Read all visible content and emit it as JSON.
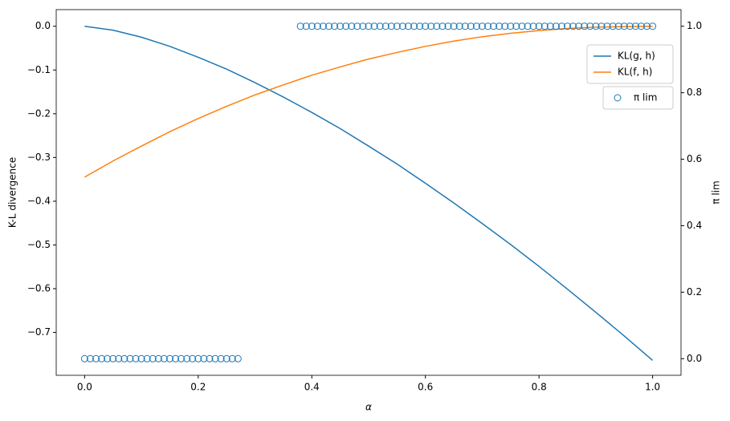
{
  "chart_data": {
    "type": "line",
    "x_label": "α",
    "y_label": "K-L divergence",
    "y2_label": "π lim",
    "x": [
      0,
      0.05,
      0.1,
      0.15,
      0.2,
      0.25,
      0.3,
      0.35,
      0.4,
      0.45,
      0.5,
      0.55,
      0.6,
      0.65,
      0.7,
      0.75,
      0.8,
      0.85,
      0.9,
      0.95,
      1
    ],
    "series": [
      {
        "name": "KL(g, h)",
        "color": "#1f77b4",
        "values": [
          0,
          -0.009,
          -0.025,
          -0.046,
          -0.071,
          -0.098,
          -0.129,
          -0.162,
          -0.197,
          -0.234,
          -0.274,
          -0.315,
          -0.359,
          -0.404,
          -0.451,
          -0.499,
          -0.549,
          -0.601,
          -0.654,
          -0.708,
          -0.764
        ]
      },
      {
        "name": "KL(f, h)",
        "color": "#ff7f0e",
        "values": [
          -0.345,
          -0.308,
          -0.274,
          -0.241,
          -0.211,
          -0.183,
          -0.157,
          -0.134,
          -0.112,
          -0.093,
          -0.075,
          -0.06,
          -0.046,
          -0.034,
          -0.024,
          -0.016,
          -0.01,
          -0.005,
          -0.002,
          -0.001,
          0
        ]
      },
      {
        "name": "π lim",
        "type": "scatter",
        "axis": "y2",
        "color": "#1f77b4",
        "x": [
          0,
          0.01,
          0.02,
          0.03,
          0.04,
          0.05,
          0.06,
          0.07,
          0.08,
          0.09,
          0.1,
          0.11,
          0.12,
          0.13,
          0.14,
          0.15,
          0.16,
          0.17,
          0.18,
          0.19,
          0.2,
          0.21,
          0.22,
          0.23,
          0.24,
          0.25,
          0.26,
          0.27,
          0.38,
          0.39,
          0.4,
          0.41,
          0.42,
          0.43,
          0.44,
          0.45,
          0.46,
          0.47,
          0.48,
          0.49,
          0.5,
          0.51,
          0.52,
          0.53,
          0.54,
          0.55,
          0.56,
          0.57,
          0.58,
          0.59,
          0.6,
          0.61,
          0.62,
          0.63,
          0.64,
          0.65,
          0.66,
          0.67,
          0.68,
          0.69,
          0.7,
          0.71,
          0.72,
          0.73,
          0.74,
          0.75,
          0.76,
          0.77,
          0.78,
          0.79,
          0.8,
          0.81,
          0.82,
          0.83,
          0.84,
          0.85,
          0.86,
          0.87,
          0.88,
          0.89,
          0.9,
          0.91,
          0.92,
          0.93,
          0.94,
          0.95,
          0.96,
          0.97,
          0.98,
          0.99,
          1
        ],
        "values": [
          0,
          0,
          0,
          0,
          0,
          0,
          0,
          0,
          0,
          0,
          0,
          0,
          0,
          0,
          0,
          0,
          0,
          0,
          0,
          0,
          0,
          0,
          0,
          0,
          0,
          0,
          0,
          0,
          1,
          1,
          1,
          1,
          1,
          1,
          1,
          1,
          1,
          1,
          1,
          1,
          1,
          1,
          1,
          1,
          1,
          1,
          1,
          1,
          1,
          1,
          1,
          1,
          1,
          1,
          1,
          1,
          1,
          1,
          1,
          1,
          1,
          1,
          1,
          1,
          1,
          1,
          1,
          1,
          1,
          1,
          1,
          1,
          1,
          1,
          1,
          1,
          1,
          1,
          1,
          1,
          1,
          1,
          1,
          1,
          1,
          1,
          1,
          1,
          1,
          1,
          1
        ]
      }
    ],
    "xlim": [
      -0.05,
      1.05
    ],
    "xticks": [
      {
        "value": 0,
        "label": "0.0"
      },
      0.2,
      0.4,
      0.6,
      0.8,
      {
        "value": 1,
        "label": "1.0"
      }
    ],
    "ylim": [
      -0.798,
      0.038
    ],
    "yticks": [
      {
        "value": -0.7,
        "label": "−0.7"
      },
      {
        "value": -0.6,
        "label": "−0.6"
      },
      {
        "value": -0.5,
        "label": "−0.5"
      },
      {
        "value": -0.4,
        "label": "−0.4"
      },
      {
        "value": -0.3,
        "label": "−0.3"
      },
      {
        "value": -0.2,
        "label": "−0.2"
      },
      {
        "value": -0.1,
        "label": "−0.1"
      },
      {
        "value": 0,
        "label": "0.0"
      }
    ],
    "y2lim": [
      -0.05,
      1.05
    ],
    "y2ticks": [
      {
        "value": 0,
        "label": "0.0"
      },
      0.2,
      0.4,
      0.6,
      0.8,
      {
        "value": 1,
        "label": "1.0"
      }
    ]
  }
}
